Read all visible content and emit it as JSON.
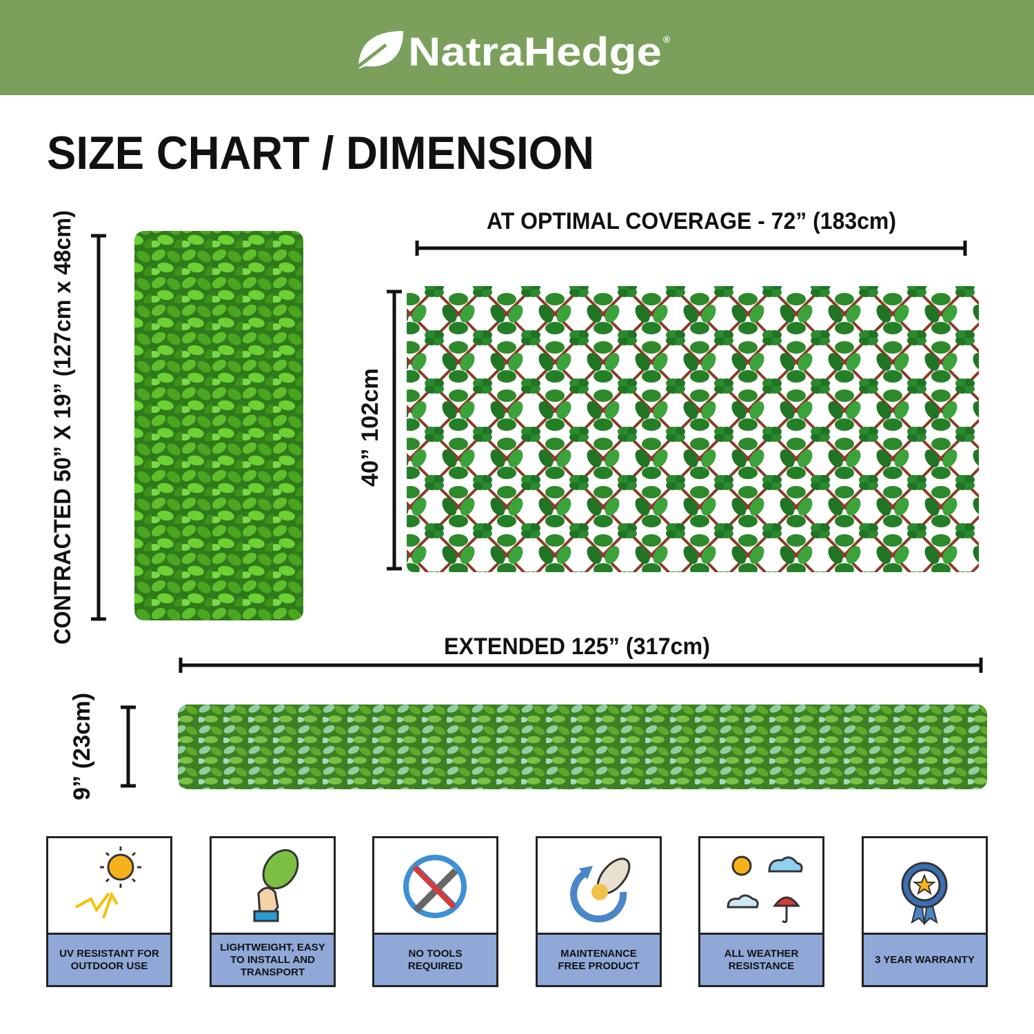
{
  "header": {
    "brand": "NatraHedge",
    "mark": "®"
  },
  "title": "SIZE CHART / DIMENSION",
  "dimensions": {
    "contracted": "CONTRACTED 50” X 19” (127cm x 48cm)",
    "optimal_width": "AT OPTIMAL COVERAGE - 72” (183cm)",
    "optimal_height": "40” 102cm",
    "extended_width": "EXTENDED 125” (317cm)",
    "extended_height": "9” (23cm)"
  },
  "features": [
    "UV RESISTANT FOR OUTDOOR USE",
    "LIGHTWEIGHT, EASY TO INSTALL AND TRANSPORT",
    "NO TOOLS REQUIRED",
    "MAINTENANCE FREE PRODUCT",
    "ALL WEATHER RESISTANCE",
    "3 YEAR WARRANTY"
  ]
}
